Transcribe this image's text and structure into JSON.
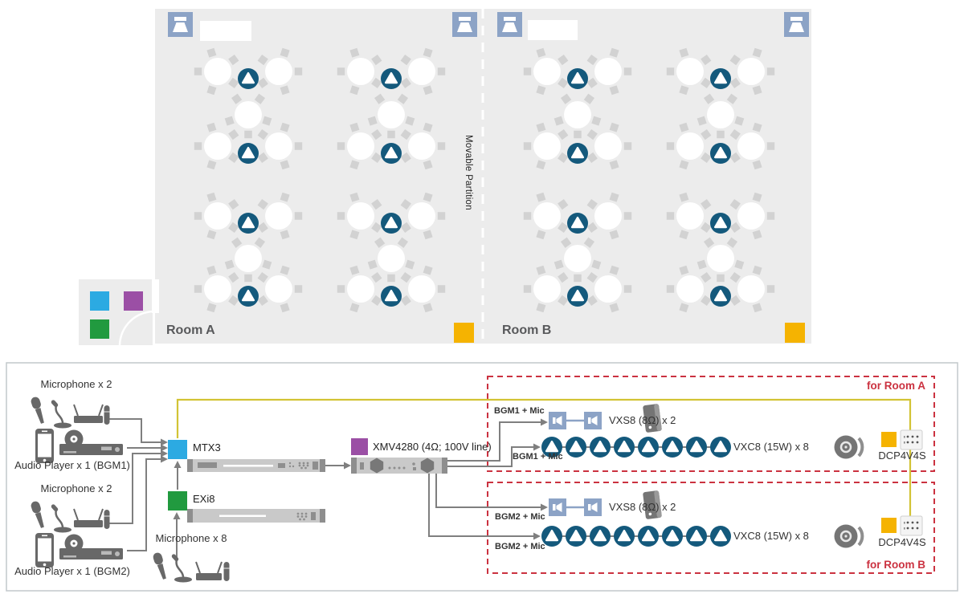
{
  "floor_plan": {
    "room_a_label": "Room A",
    "room_b_label": "Room B",
    "partition_label": "Movable Partition"
  },
  "diagram": {
    "sources": {
      "mic_group_a": "Microphone x 2",
      "audio_player_1": "Audio Player x 1 (BGM1)",
      "mic_group_b": "Microphone x 2",
      "audio_player_2": "Audio Player x 1 (BGM2)",
      "mic_group_8": "Microphone x 8"
    },
    "devices": {
      "mtx3": "MTX3",
      "exi8": "EXi8",
      "xmv4280": "XMV4280 (4Ω; 100V line)",
      "dcp_a": "DCP4V4S",
      "dcp_b": "DCP4V4S"
    },
    "room_a": {
      "title": "for Room A",
      "feed_top": "BGM1 + Mic",
      "feed_bottom": "BGM1 + Mic",
      "surface_speakers": "VXS8 (8Ω) x 2",
      "ceiling_speakers": "VXC8 (15W) x 8"
    },
    "room_b": {
      "title": "for Room B",
      "feed_top": "BGM2 + Mic",
      "feed_bottom": "BGM2 + Mic",
      "surface_speakers": "VXS8 (8Ω) x 2",
      "ceiling_speakers": "VXC8 (15W) x 8"
    }
  },
  "colors": {
    "floor": "#ececec",
    "table": "#ffffff",
    "chair": "#d2d2d2",
    "ceiling_speaker": "#14597c",
    "wall_speaker": "#8ca3c6",
    "panel_yellow": "#f5b301",
    "mtx_cyan": "#2caae2",
    "xmv_purple": "#9b4fa5",
    "exi_green": "#219a3f",
    "cable_yellow": "#d2c335",
    "line_gray": "#7f7f7f",
    "box_red": "#cb3240",
    "icon_gray": "#686868",
    "rack_gray": "#c9c9c9",
    "rack_dark": "#8e8e8e"
  }
}
